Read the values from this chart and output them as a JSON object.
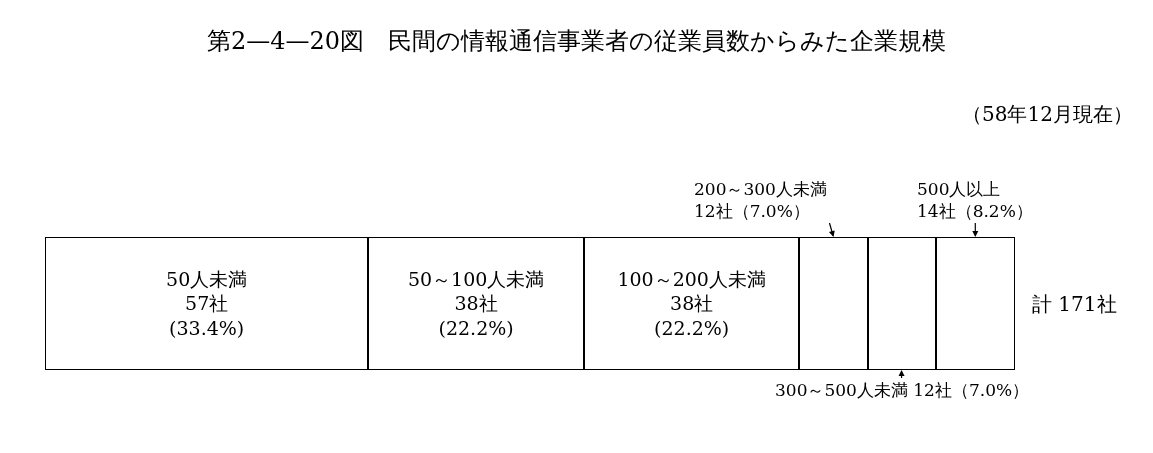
{
  "chart_data": {
    "type": "bar",
    "orientation": "horizontal",
    "stacked": true,
    "title": "第2—4—20図　民間の情報通信事業者の従業員数からみた企業規模",
    "subtitle": "（58年12月現在）",
    "categories": [
      null
    ],
    "series": [
      {
        "name": "50人未満",
        "color": "#ffffff",
        "values": [
          57
        ],
        "value_labels": [
          "57社\n(33.4%)"
        ]
      },
      {
        "name": "50～100人未満",
        "color": "#ffffff",
        "values": [
          38
        ],
        "value_labels": [
          "38社\n(22.2%)"
        ]
      },
      {
        "name": "100～200人未満",
        "color": "#ffffff",
        "values": [
          38
        ],
        "value_labels": [
          "38社\n(22.2%)"
        ]
      },
      {
        "name": "200～300人未満",
        "color": "#ffffff",
        "values": [
          12
        ],
        "value_labels": [
          "12社（7.0%）"
        ]
      },
      {
        "name": "300～500人未満",
        "color": "#ffffff",
        "values": [
          12
        ],
        "value_labels": [
          "12社（7.0%）"
        ]
      },
      {
        "name": "500人以上",
        "color": "#ffffff",
        "values": [
          14
        ],
        "value_labels": [
          "14社（8.2%）"
        ]
      }
    ],
    "annotations": [
      "計 171社"
    ],
    "legend": false,
    "tick_labels": false
  }
}
